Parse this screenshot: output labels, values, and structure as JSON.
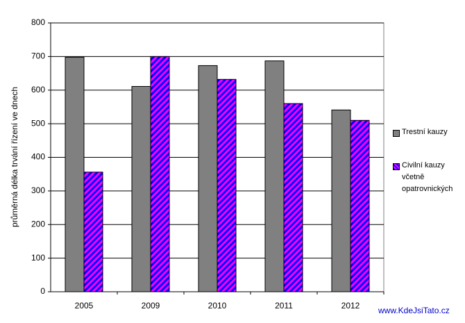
{
  "chart_data": {
    "type": "bar",
    "y_label": "průměrná délka trvání řízení ve dnech",
    "categories": [
      "2005",
      "2009",
      "2010",
      "2011",
      "2012"
    ],
    "series": [
      {
        "name": "Trestní kauzy",
        "color": "#808080",
        "values": [
          698,
          611,
          673,
          687,
          541
        ]
      },
      {
        "name": "Civilní kauzy včetně opatrovnických",
        "color": "#0000ff",
        "hatch_color": "#ff00ff",
        "values": [
          356,
          700,
          632,
          560,
          510
        ]
      }
    ],
    "ylim": [
      0,
      800
    ],
    "yticks": [
      0,
      100,
      200,
      300,
      400,
      500,
      600,
      700,
      800
    ],
    "grid": true,
    "legend": "right",
    "watermark": "www.KdeJsiTato.cz"
  }
}
